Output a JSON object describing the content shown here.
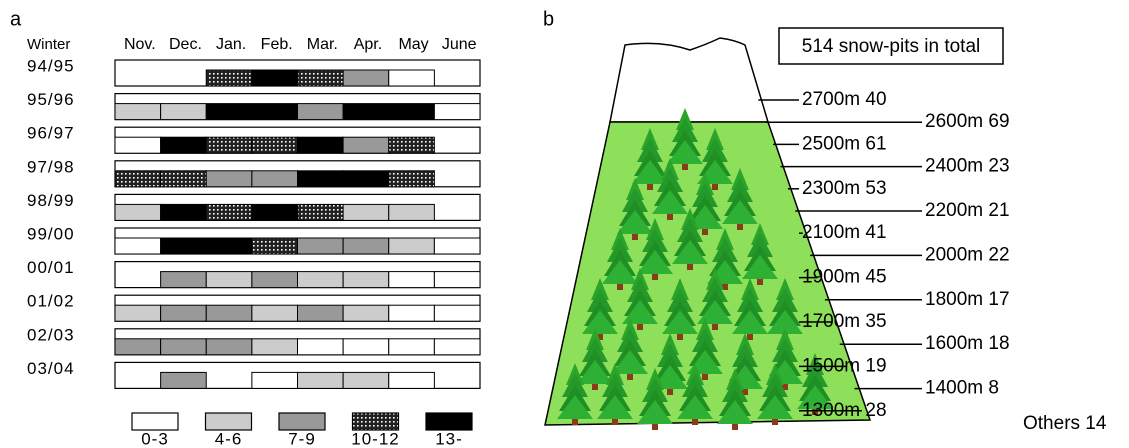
{
  "panel_a": {
    "label": "a",
    "row_header": "Winter",
    "months": [
      "Nov.",
      "Dec.",
      "Jan.",
      "Feb.",
      "Mar.",
      "Apr.",
      "May",
      "June"
    ],
    "winters": [
      "94/95",
      "95/96",
      "96/97",
      "97/98",
      "98/99",
      "99/00",
      "00/01",
      "01/02",
      "02/03",
      "03/04"
    ],
    "cells": [
      [
        null,
        null,
        "10-12",
        "13-",
        "10-12",
        "7-9",
        "0-3",
        null
      ],
      [
        "4-6",
        "4-6",
        "13-",
        "13-",
        "7-9",
        "13-",
        "13-",
        "0-3"
      ],
      [
        "0-3",
        "13-",
        "10-12",
        "10-12",
        "13-",
        "7-9",
        "10-12",
        null
      ],
      [
        "10-12",
        "10-12",
        "7-9",
        "7-9",
        "13-",
        "13-",
        "10-12",
        null
      ],
      [
        "4-6",
        "13-",
        "10-12",
        "13-",
        "10-12",
        "4-6",
        "4-6",
        null
      ],
      [
        "0-3",
        "13-",
        "13-",
        "10-12",
        "7-9",
        "7-9",
        "4-6",
        "0-3"
      ],
      [
        null,
        "7-9",
        "4-6",
        "7-9",
        "4-6",
        "4-6",
        "0-3",
        "0-3"
      ],
      [
        "4-6",
        "7-9",
        "7-9",
        "4-6",
        "7-9",
        "4-6",
        "0-3",
        "0-3"
      ],
      [
        "7-9",
        "7-9",
        "7-9",
        "4-6",
        "0-3",
        "0-3",
        "0-3",
        "0-3"
      ],
      [
        null,
        "7-9",
        null,
        "0-3",
        "4-6",
        "4-6",
        "0-3",
        null
      ]
    ],
    "legend": [
      {
        "label": "0-3",
        "color": "#ffffff"
      },
      {
        "label": "4-6",
        "color": "#cccccc"
      },
      {
        "label": "7-9",
        "color": "#999999"
      },
      {
        "label": "10-12",
        "color": "url(#hatch)"
      },
      {
        "label": "13-",
        "color": "#000000"
      }
    ]
  },
  "panel_b": {
    "label": "b",
    "total": "514 snow-pits in total",
    "elevations": [
      "2700m 40",
      "2600m 69",
      "2500m 61",
      "2400m 23",
      "2300m 53",
      "2200m 21",
      "2100m 41",
      "2000m 22",
      "1900m 45",
      "1800m 17",
      "1700m 35",
      "1600m 18",
      "1500m 19",
      "1400m 8",
      "1300m 28"
    ],
    "others": "Others 14"
  }
}
